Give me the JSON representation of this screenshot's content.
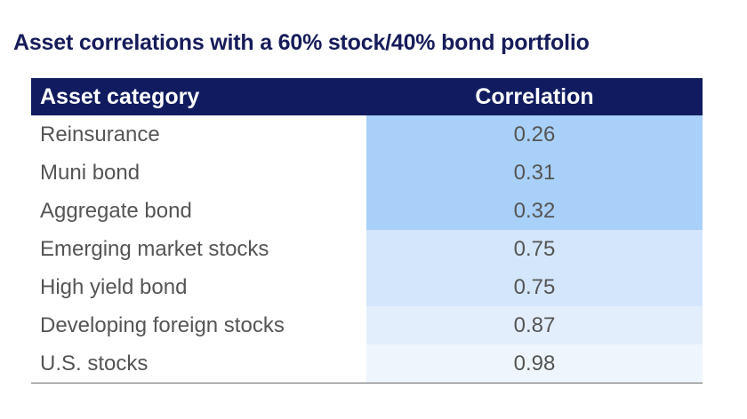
{
  "title": "Asset correlations with a 60% stock/40% bond portfolio",
  "table": {
    "header": [
      "Asset category",
      "Correlation"
    ],
    "rows": [
      [
        "Reinsurance",
        "0.26"
      ],
      [
        "Muni bond",
        "0.31"
      ],
      [
        "Aggregate bond",
        "0.32"
      ],
      [
        "Emerging market stocks",
        "0.75"
      ],
      [
        "High yield bond",
        "0.75"
      ],
      [
        "Developing foreign stocks",
        "0.87"
      ],
      [
        "U.S. stocks",
        "0.98"
      ]
    ]
  }
}
